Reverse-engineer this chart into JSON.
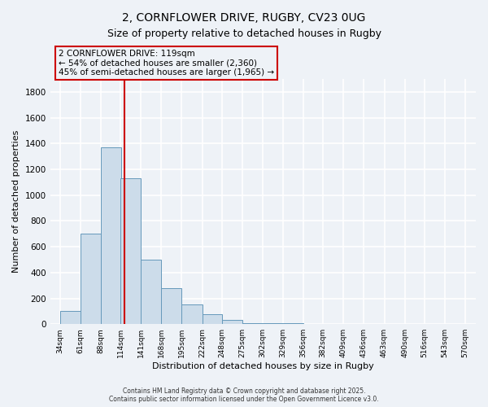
{
  "title_line1": "2, CORNFLOWER DRIVE, RUGBY, CV23 0UG",
  "title_line2": "Size of property relative to detached houses in Rugby",
  "xlabel": "Distribution of detached houses by size in Rugby",
  "ylabel": "Number of detached properties",
  "bar_left_edges": [
    34,
    61,
    88,
    114,
    141,
    168,
    195,
    222,
    248,
    275,
    302,
    329,
    356,
    382,
    409,
    436,
    463,
    490,
    516,
    543
  ],
  "bar_widths": [
    27,
    27,
    27,
    27,
    27,
    27,
    27,
    26,
    27,
    27,
    27,
    27,
    26,
    27,
    27,
    27,
    27,
    26,
    27,
    27
  ],
  "bar_heights": [
    100,
    700,
    1370,
    1130,
    500,
    280,
    150,
    75,
    30,
    10,
    5,
    5,
    3,
    3,
    2,
    2,
    1,
    1,
    1,
    1
  ],
  "bar_color": "#ccdcea",
  "bar_edgecolor": "#6699bb",
  "xtick_labels": [
    "34sqm",
    "61sqm",
    "88sqm",
    "114sqm",
    "141sqm",
    "168sqm",
    "195sqm",
    "222sqm",
    "248sqm",
    "275sqm",
    "302sqm",
    "329sqm",
    "356sqm",
    "382sqm",
    "409sqm",
    "436sqm",
    "463sqm",
    "490sqm",
    "516sqm",
    "543sqm",
    "570sqm"
  ],
  "xtick_positions": [
    34,
    61,
    88,
    114,
    141,
    168,
    195,
    222,
    248,
    275,
    302,
    329,
    356,
    382,
    409,
    436,
    463,
    490,
    516,
    543,
    570
  ],
  "ytick_values": [
    0,
    200,
    400,
    600,
    800,
    1000,
    1200,
    1400,
    1600,
    1800
  ],
  "ylim": [
    0,
    1900
  ],
  "xlim": [
    21,
    584
  ],
  "vline_x": 119,
  "vline_color": "#cc0000",
  "annotation_line1": "2 CORNFLOWER DRIVE: 119sqm",
  "annotation_line2": "← 54% of detached houses are smaller (2,360)",
  "annotation_line3": "45% of semi-detached houses are larger (1,965) →",
  "box_color": "#cc0000",
  "footer_line1": "Contains HM Land Registry data © Crown copyright and database right 2025.",
  "footer_line2": "Contains public sector information licensed under the Open Government Licence v3.0.",
  "bg_color": "#eef2f7",
  "grid_color": "#ffffff",
  "title_fontsize": 10,
  "subtitle_fontsize": 9,
  "tick_fontsize": 6.5,
  "ylabel_fontsize": 8,
  "xlabel_fontsize": 8,
  "annot_fontsize": 7.5,
  "footer_fontsize": 5.5
}
